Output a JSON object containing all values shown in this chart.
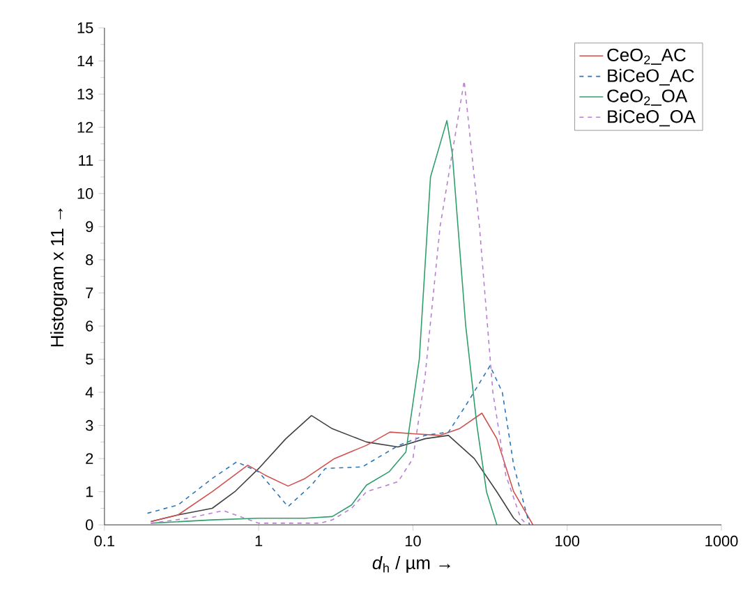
{
  "chart_data": {
    "type": "line",
    "xlabel": "*d*$_{h}$ / µm →",
    "ylabel": "Histogram x 11 →",
    "log": "x",
    "xlim": [
      0.1,
      1000
    ],
    "ylim": [
      0,
      15
    ],
    "xticks": [
      0.1,
      1,
      10,
      100,
      1000
    ],
    "yticks": [
      0,
      1,
      2,
      3,
      4,
      5,
      6,
      7,
      8,
      9,
      10,
      11,
      12,
      13,
      14,
      15
    ],
    "legend": "top right",
    "grid": false,
    "series": [
      {
        "color": "#404040",
        "line_style": "solid",
        "x": [
          0.2,
          0.3,
          0.5,
          0.7,
          1,
          1.5,
          2.2,
          3,
          5,
          8,
          12,
          17,
          25,
          35,
          45,
          50
        ],
        "values": [
          0.1,
          0.3,
          0.5,
          1.0,
          1.7,
          2.6,
          3.3,
          2.9,
          2.5,
          2.35,
          2.6,
          2.7,
          2.0,
          1.0,
          0.2,
          0
        ]
      },
      {
        "name": "CeO$_{2}$_AC",
        "color": "#d0504f",
        "line_style": "solid",
        "x": [
          0.2,
          0.3,
          0.5,
          0.85,
          1.1,
          1.55,
          2,
          3.1,
          5,
          7.1,
          10,
          15,
          20,
          28,
          35,
          45,
          60
        ],
        "values": [
          0.1,
          0.3,
          1.0,
          1.8,
          1.5,
          1.17,
          1.4,
          2.0,
          2.4,
          2.8,
          2.75,
          2.7,
          2.9,
          3.37,
          2.6,
          1.0,
          0
        ]
      },
      {
        "name": "BiCeO_AC",
        "color": "#2e75b6",
        "line_style": "dashed",
        "x": [
          0.19,
          0.3,
          0.5,
          0.72,
          1,
          1.55,
          2.2,
          2.7,
          4.7,
          8.1,
          12,
          17,
          22,
          31.6,
          38,
          45,
          57
        ],
        "values": [
          0.35,
          0.6,
          1.4,
          1.9,
          1.6,
          0.55,
          1.2,
          1.7,
          1.75,
          2.4,
          2.7,
          2.8,
          3.6,
          4.8,
          4.0,
          1.8,
          0
        ]
      },
      {
        "name": "CeO$_{2}$_OA",
        "color": "#2e9e6b",
        "line_style": "solid",
        "x": [
          0.2,
          0.5,
          1,
          2,
          3,
          4,
          5,
          7,
          9,
          11,
          13,
          16.6,
          18,
          22,
          26,
          30,
          35
        ],
        "values": [
          0.05,
          0.15,
          0.2,
          0.2,
          0.25,
          0.6,
          1.2,
          1.6,
          2.2,
          5.0,
          10.5,
          12.2,
          11.2,
          6.0,
          3.0,
          1.0,
          0
        ]
      },
      {
        "name": "BiCeO_OA",
        "color": "#b77fd0",
        "line_style": "dashed",
        "x": [
          0.2,
          0.35,
          0.59,
          1,
          2.5,
          3,
          4,
          5,
          8,
          10,
          12,
          15,
          21.5,
          27,
          33,
          40,
          50,
          55
        ],
        "values": [
          0.05,
          0.2,
          0.43,
          0.05,
          0.05,
          0.15,
          0.5,
          1.0,
          1.3,
          2.0,
          4.5,
          9.0,
          13.4,
          9.0,
          4.0,
          1.5,
          0.2,
          0
        ]
      }
    ]
  }
}
